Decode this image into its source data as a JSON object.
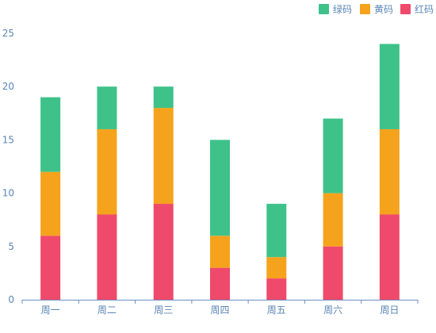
{
  "chart_data": {
    "type": "bar",
    "stacked": true,
    "categories": [
      "周一",
      "周二",
      "周三",
      "周四",
      "周五",
      "周六",
      "周日"
    ],
    "series": [
      {
        "name": "红码",
        "color": "#ef4a6b",
        "values": [
          6,
          8,
          9,
          3,
          2,
          5,
          8
        ]
      },
      {
        "name": "黄码",
        "color": "#f5a31c",
        "values": [
          6,
          8,
          9,
          3,
          2,
          5,
          8
        ]
      },
      {
        "name": "绿码",
        "color": "#3ec28a",
        "values": [
          7,
          4,
          2,
          9,
          5,
          7,
          8
        ]
      }
    ],
    "legend_order": [
      "绿码",
      "黄码",
      "红码"
    ],
    "legend_position": "top-right",
    "ylim": [
      0,
      25
    ],
    "yticks": [
      0,
      5,
      10,
      15,
      20,
      25
    ],
    "grid": false,
    "title": "",
    "xlabel": "",
    "ylabel": ""
  }
}
